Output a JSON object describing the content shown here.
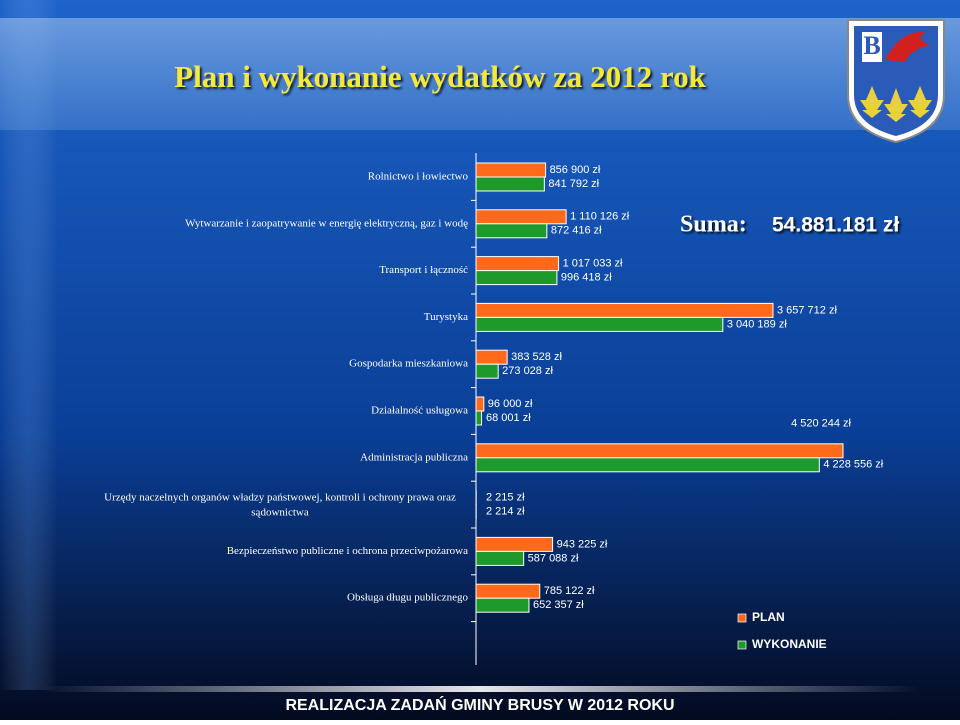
{
  "title": "Plan i wykonanie wydatków za 2012 rok",
  "sum_label": "Suma:",
  "sum_value": "54.881.181 zł",
  "footer": "REALIZACJA ZADAŃ GMINY BRUSY W 2012 ROKU",
  "chart_data": {
    "type": "hbar",
    "categories": [
      "Rolnictwo i łowiectwo",
      "Wytwarzanie i zaopatrywanie w energię elektryczną, gaz i wodę",
      "Transport i łączność",
      "Turystyka",
      "Gospodarka mieszkaniowa",
      "Działalność usługowa",
      "Administracja publiczna",
      "Urzędy naczelnych organów władzy państwowej, kontroli i ochrony prawa oraz sądownictwa",
      "Bezpieczeństwo publiczne i ochrona przeciwpożarowa",
      "Obsługa długu publicznego"
    ],
    "series": [
      {
        "name": "PLAN",
        "color": "#ff6a1a",
        "values": [
          856900,
          1110126,
          1017033,
          3657712,
          383528,
          96000,
          4520244,
          2215,
          943225,
          785122
        ],
        "value_labels": [
          "856 900 zł",
          "1 110 126 zł",
          "1 017 033 zł",
          "3 657 712 zł",
          "383 528 zł",
          "96 000 zł",
          "4 520 244 zł",
          "2 215 zł",
          "943 225 zł",
          "785 122 zł"
        ]
      },
      {
        "name": "WYKONANIE",
        "color": "#1e9a2a",
        "values": [
          841792,
          872416,
          996418,
          3040189,
          273028,
          68001,
          4228556,
          2214,
          587088,
          652357
        ],
        "value_labels": [
          "841 792 zł",
          "872 416 zł",
          "996 418 zł",
          "3 040 189 zł",
          "273 028 zł",
          "68 001 zł",
          "4 228 556 zł",
          "2 214 zł",
          "587 088 zł",
          "652 357 zł"
        ]
      }
    ]
  }
}
